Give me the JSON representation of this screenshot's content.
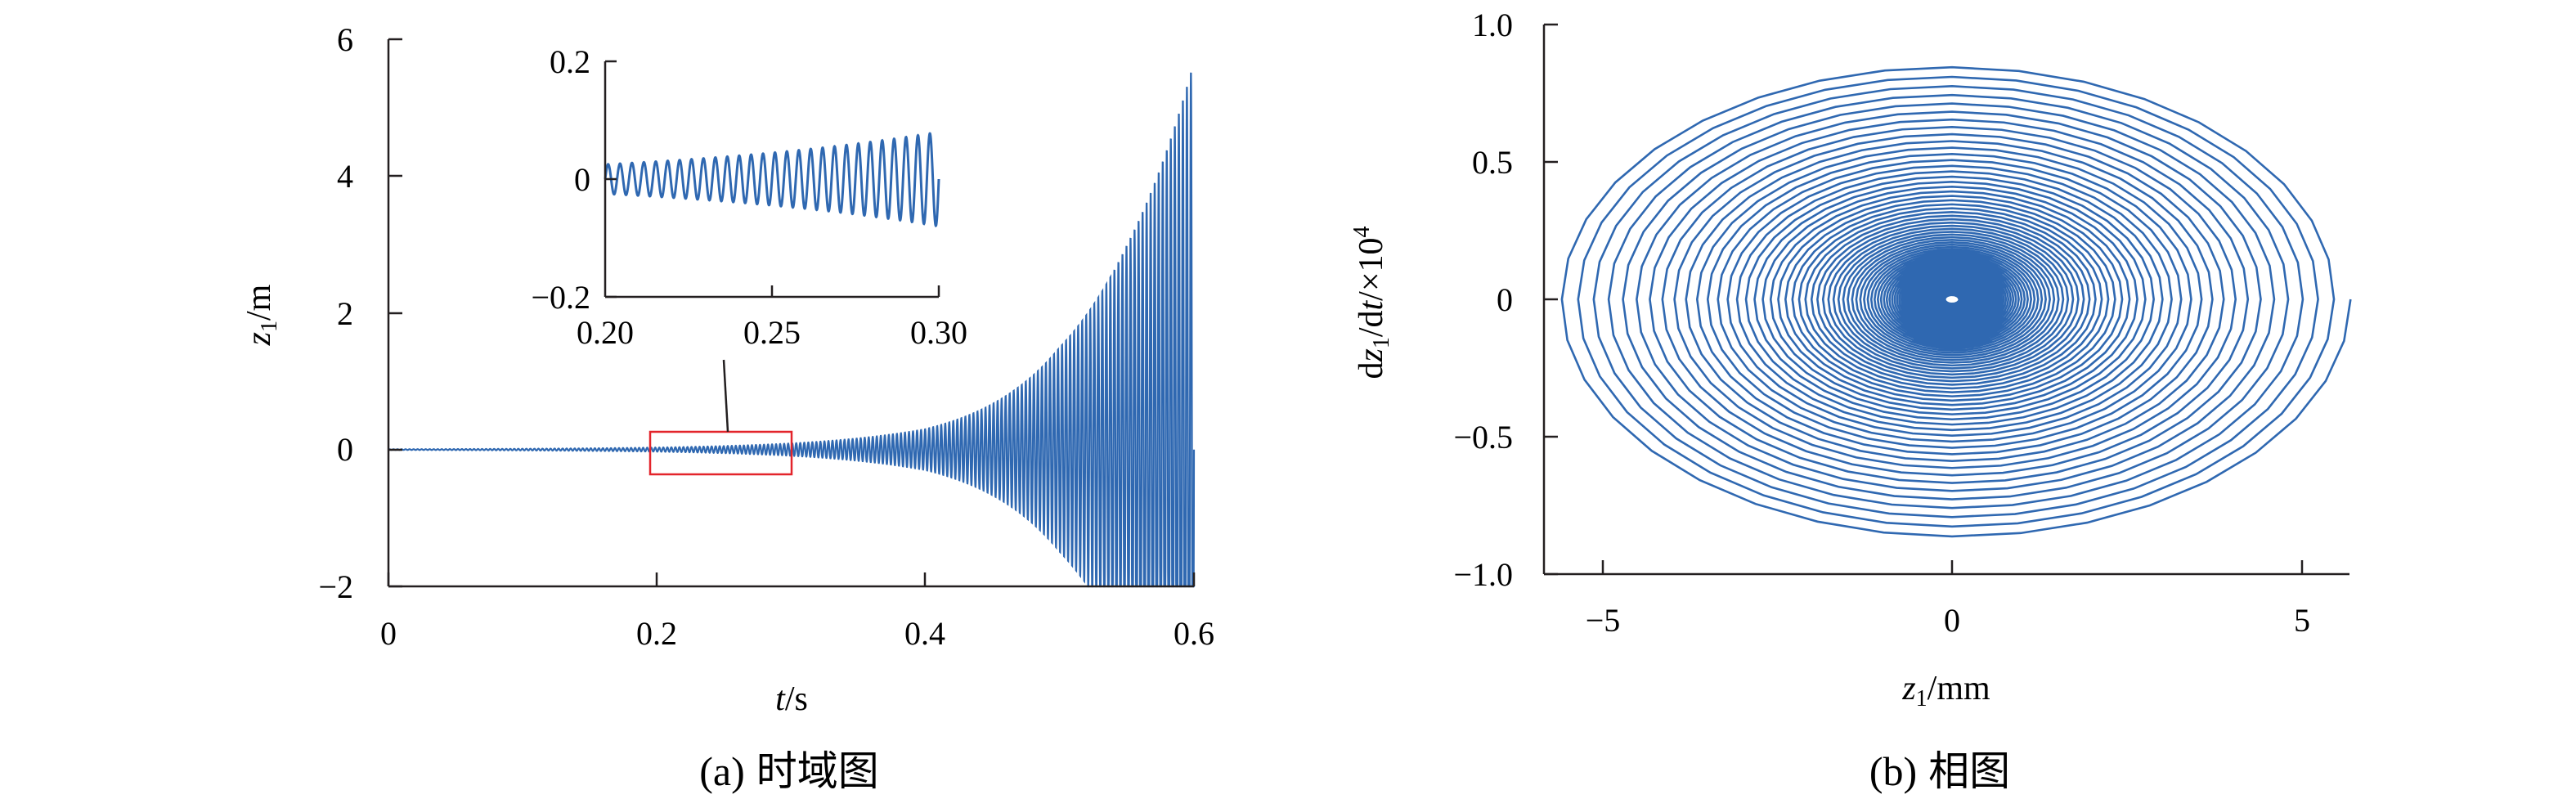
{
  "figure": {
    "left": {
      "caption_tag": "(a)",
      "caption_text": "时域图",
      "xlabel_var": "t",
      "xlabel_unit": "/s",
      "ylabel_var": "z",
      "ylabel_sub": "1",
      "ylabel_unit": "/m"
    },
    "right": {
      "caption_tag": "(b)",
      "caption_text": "相图",
      "xlabel_var": "z",
      "xlabel_sub": "1",
      "xlabel_unit": "/mm",
      "ylabel_d1": "d",
      "ylabel_var": "z",
      "ylabel_sub": "1",
      "ylabel_mid": "/d",
      "ylabel_t": "t",
      "ylabel_scale": "/×10",
      "ylabel_exp": "4"
    }
  },
  "colors": {
    "curve": "#2f68b1",
    "highlight_box": "#e3242b",
    "axis": "#231f20"
  },
  "chart_data": [
    {
      "type": "line",
      "panel": "a",
      "x_ticks": [
        "0",
        "0.2",
        "0.4",
        "0.6"
      ],
      "y_ticks": [
        "−2",
        "0",
        "2",
        "4",
        "6"
      ],
      "xlim": [
        0,
        0.6
      ],
      "ylim": [
        -2,
        6
      ],
      "series": [
        {
          "envelope_points": [
            [
              0.0,
              0.005
            ],
            [
              0.1,
              0.012
            ],
            [
              0.2,
              0.03
            ],
            [
              0.3,
              0.09
            ],
            [
              0.4,
              0.3
            ],
            [
              0.5,
              1.5
            ],
            [
              0.55,
              3.0
            ],
            [
              0.6,
              5.7
            ]
          ],
          "cycles": 200
        }
      ],
      "highlight_box": {
        "x": [
          0.2,
          0.3
        ],
        "y": [
          -0.4,
          0.25
        ]
      }
    },
    {
      "type": "line",
      "panel": "a-inset",
      "x_ticks": [
        "0.20",
        "0.25",
        "0.30"
      ],
      "y_ticks": [
        "−0.2",
        "0",
        "0.2"
      ],
      "xlim": [
        0.2,
        0.3
      ],
      "ylim": [
        -0.2,
        0.2
      ],
      "series": [
        {
          "amplitude_start": 0.025,
          "amplitude_end": 0.08,
          "cycles": 28
        }
      ]
    },
    {
      "type": "line",
      "panel": "b",
      "x_ticks": [
        "−5",
        "0",
        "5"
      ],
      "y_ticks": [
        "−1.0",
        "−0.5",
        "0",
        "0.5",
        "1.0"
      ],
      "xlim": [
        -6,
        5.8
      ],
      "ylim": [
        -1.0,
        1.0
      ],
      "series": [
        {
          "spiral_amplitude_start_mm": 0.1,
          "spiral_amplitude_end_mm": 5.7,
          "velocity_ratio": 0.153,
          "turns": 95
        }
      ]
    }
  ]
}
